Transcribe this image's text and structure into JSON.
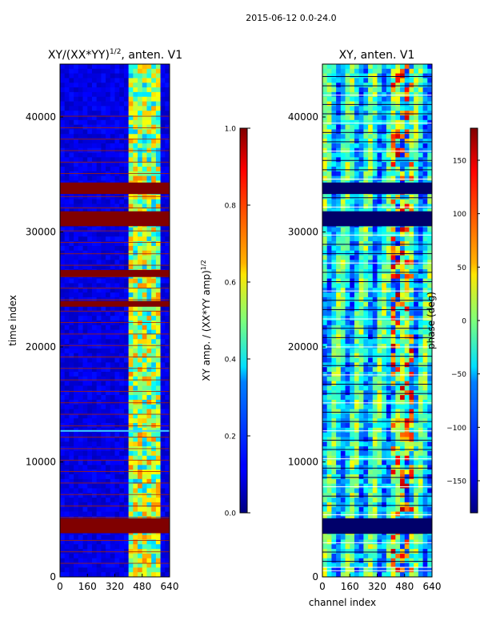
{
  "suptitle": "2015-06-12 0.0-24.0",
  "chart_data": [
    {
      "type": "heatmap",
      "title": "XY/(XX*YY)^1/2, anten. V1",
      "title_main": "XY/(XX*YY)",
      "title_sup": "1/2",
      "title_tail": ", anten. V1",
      "xlabel": "",
      "ylabel": "time index",
      "xlim": [
        0,
        640
      ],
      "ylim": [
        0,
        44600
      ],
      "xticks": [
        0,
        160,
        320,
        480,
        640
      ],
      "yticks": [
        0,
        10000,
        20000,
        30000,
        40000
      ],
      "colormap": "jet",
      "colorbar": {
        "label": "XY amp. / (XX*YY amp)^1/2",
        "label_main": "XY amp. / (XX*YY amp)",
        "label_sup": "1/2",
        "range": [
          0.0,
          1.0
        ],
        "ticks": [
          "0.0",
          "0.2",
          "0.4",
          "0.6",
          "0.8",
          "1.0"
        ]
      },
      "saturated_bands_y": [
        [
          3800,
          5100
        ],
        [
          30500,
          31800
        ],
        [
          33300,
          34300
        ],
        [
          26100,
          26700
        ],
        [
          23500,
          24000
        ]
      ],
      "highlight_rows_y": [
        12700
      ]
    },
    {
      "type": "heatmap",
      "title": "XY, anten. V1",
      "xlabel": "channel index",
      "ylabel": "",
      "xlim": [
        0,
        640
      ],
      "ylim": [
        0,
        44600
      ],
      "xticks": [
        0,
        160,
        320,
        480,
        640
      ],
      "yticks": [
        0,
        10000,
        20000,
        30000,
        40000
      ],
      "colormap": "jet",
      "colorbar": {
        "label": "phase (deg)",
        "range": [
          -180,
          180
        ],
        "ticks": [
          "150",
          "100",
          "50",
          "0",
          "−50",
          "−100",
          "−150"
        ],
        "tick_values": [
          150,
          100,
          50,
          0,
          -50,
          -100,
          -150
        ]
      },
      "dark_bands_y": [
        [
          3800,
          5100
        ],
        [
          30500,
          31800
        ],
        [
          33300,
          34300
        ]
      ]
    }
  ],
  "colors": {
    "jet_dark_blue": "#00008b",
    "jet_blue": "#0000ff",
    "jet_cyan": "#00ffff",
    "jet_yellow": "#ffff00",
    "jet_red": "#ff0000",
    "jet_dark_red": "#800000"
  }
}
